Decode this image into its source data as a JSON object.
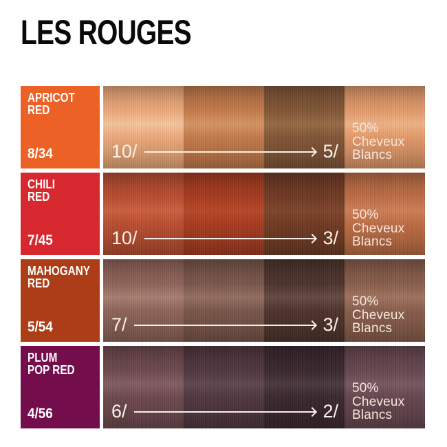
{
  "title": "LES ROUGES",
  "cheveux_blancs": {
    "line1": "50%",
    "line2": "Cheveux",
    "line3": "Blancs"
  },
  "colors": {
    "background": "#ffffff",
    "title_text": "#0a0a0a",
    "label_text": "#ffffff",
    "swatch_overlay_text": "#fbf1e8"
  },
  "rows": [
    {
      "name1": "APRICOT",
      "name2": "RED",
      "code": "8/34",
      "label_bg": "#EC6226",
      "start_level": "10/",
      "end_level": "5/",
      "swatches": [
        {
          "base": "#F0AB7B",
          "shine": "#FFE2C280"
        },
        {
          "base": "#C67C4B",
          "shine": "#F5BE8A66"
        },
        {
          "base": "#835737",
          "shine": "#C4936255"
        },
        {
          "base": "#E69C6C",
          "shine": "#FFD4AC73"
        }
      ]
    },
    {
      "name1": "CHILI",
      "name2": "RED",
      "code": "7/45",
      "label_bg": "#D7282F",
      "start_level": "10/",
      "end_level": "3/",
      "swatches": [
        {
          "base": "#BC4E31",
          "shine": "#ED835C59"
        },
        {
          "base": "#AA3C21",
          "shine": "#D65F3559"
        },
        {
          "base": "#713B24",
          "shine": "#9C5C3A52"
        },
        {
          "base": "#C06E46",
          "shine": "#EFA67759"
        }
      ]
    },
    {
      "name1": "MAHOGANY",
      "name2": "RED",
      "code": "5/54",
      "label_bg": "#AC3D17",
      "start_level": "7/",
      "end_level": "3/",
      "swatches": [
        {
          "base": "#90655A",
          "shine": "#D2A89866"
        },
        {
          "base": "#7C574C",
          "shine": "#BD968666"
        },
        {
          "base": "#4E342C",
          "shine": "#8C736C5E"
        },
        {
          "base": "#8B5F4D",
          "shine": "#C7977D61"
        }
      ]
    },
    {
      "name1": "PLUM",
      "name2": "POP RED",
      "code": "4/56",
      "label_bg": "#740D4C",
      "start_level": "6/",
      "end_level": "2/",
      "swatches": [
        {
          "base": "#6F4A50",
          "shine": "#A67F8763"
        },
        {
          "base": "#513840",
          "shine": "#82687255"
        },
        {
          "base": "#3B282F",
          "shine": "#6C59655A"
        },
        {
          "base": "#684851",
          "shine": "#9A767F5E"
        }
      ]
    }
  ]
}
